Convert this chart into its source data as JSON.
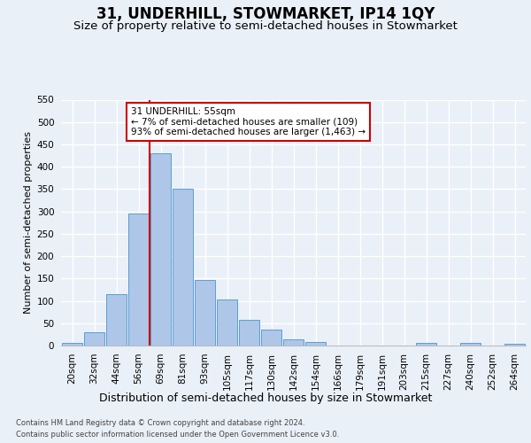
{
  "title": "31, UNDERHILL, STOWMARKET, IP14 1QY",
  "subtitle": "Size of property relative to semi-detached houses in Stowmarket",
  "xlabel": "Distribution of semi-detached houses by size in Stowmarket",
  "ylabel": "Number of semi-detached properties",
  "categories": [
    "20sqm",
    "32sqm",
    "44sqm",
    "56sqm",
    "69sqm",
    "81sqm",
    "93sqm",
    "105sqm",
    "117sqm",
    "130sqm",
    "142sqm",
    "154sqm",
    "166sqm",
    "179sqm",
    "191sqm",
    "203sqm",
    "215sqm",
    "227sqm",
    "240sqm",
    "252sqm",
    "264sqm"
  ],
  "bar_heights": [
    5,
    29,
    115,
    296,
    430,
    350,
    147,
    104,
    57,
    35,
    14,
    7,
    0,
    0,
    0,
    0,
    5,
    0,
    5,
    0,
    4
  ],
  "bar_color": "#aec6e8",
  "bar_edge_color": "#5a9fd4",
  "annotation_text": "31 UNDERHILL: 55sqm\n← 7% of semi-detached houses are smaller (109)\n93% of semi-detached houses are larger (1,463) →",
  "annotation_box_color": "#ffffff",
  "annotation_box_edge_color": "#cc0000",
  "vline_color": "#cc0000",
  "ylim": [
    0,
    550
  ],
  "yticks": [
    0,
    50,
    100,
    150,
    200,
    250,
    300,
    350,
    400,
    450,
    500,
    550
  ],
  "footer_line1": "Contains HM Land Registry data © Crown copyright and database right 2024.",
  "footer_line2": "Contains public sector information licensed under the Open Government Licence v3.0.",
  "bg_color": "#eaf0f8",
  "plot_bg_color": "#eaf0f8",
  "grid_color": "#ffffff",
  "title_fontsize": 12,
  "subtitle_fontsize": 9.5,
  "xlabel_fontsize": 9,
  "ylabel_fontsize": 8,
  "tick_fontsize": 7.5,
  "footer_fontsize": 6,
  "annotation_fontsize": 7.5
}
